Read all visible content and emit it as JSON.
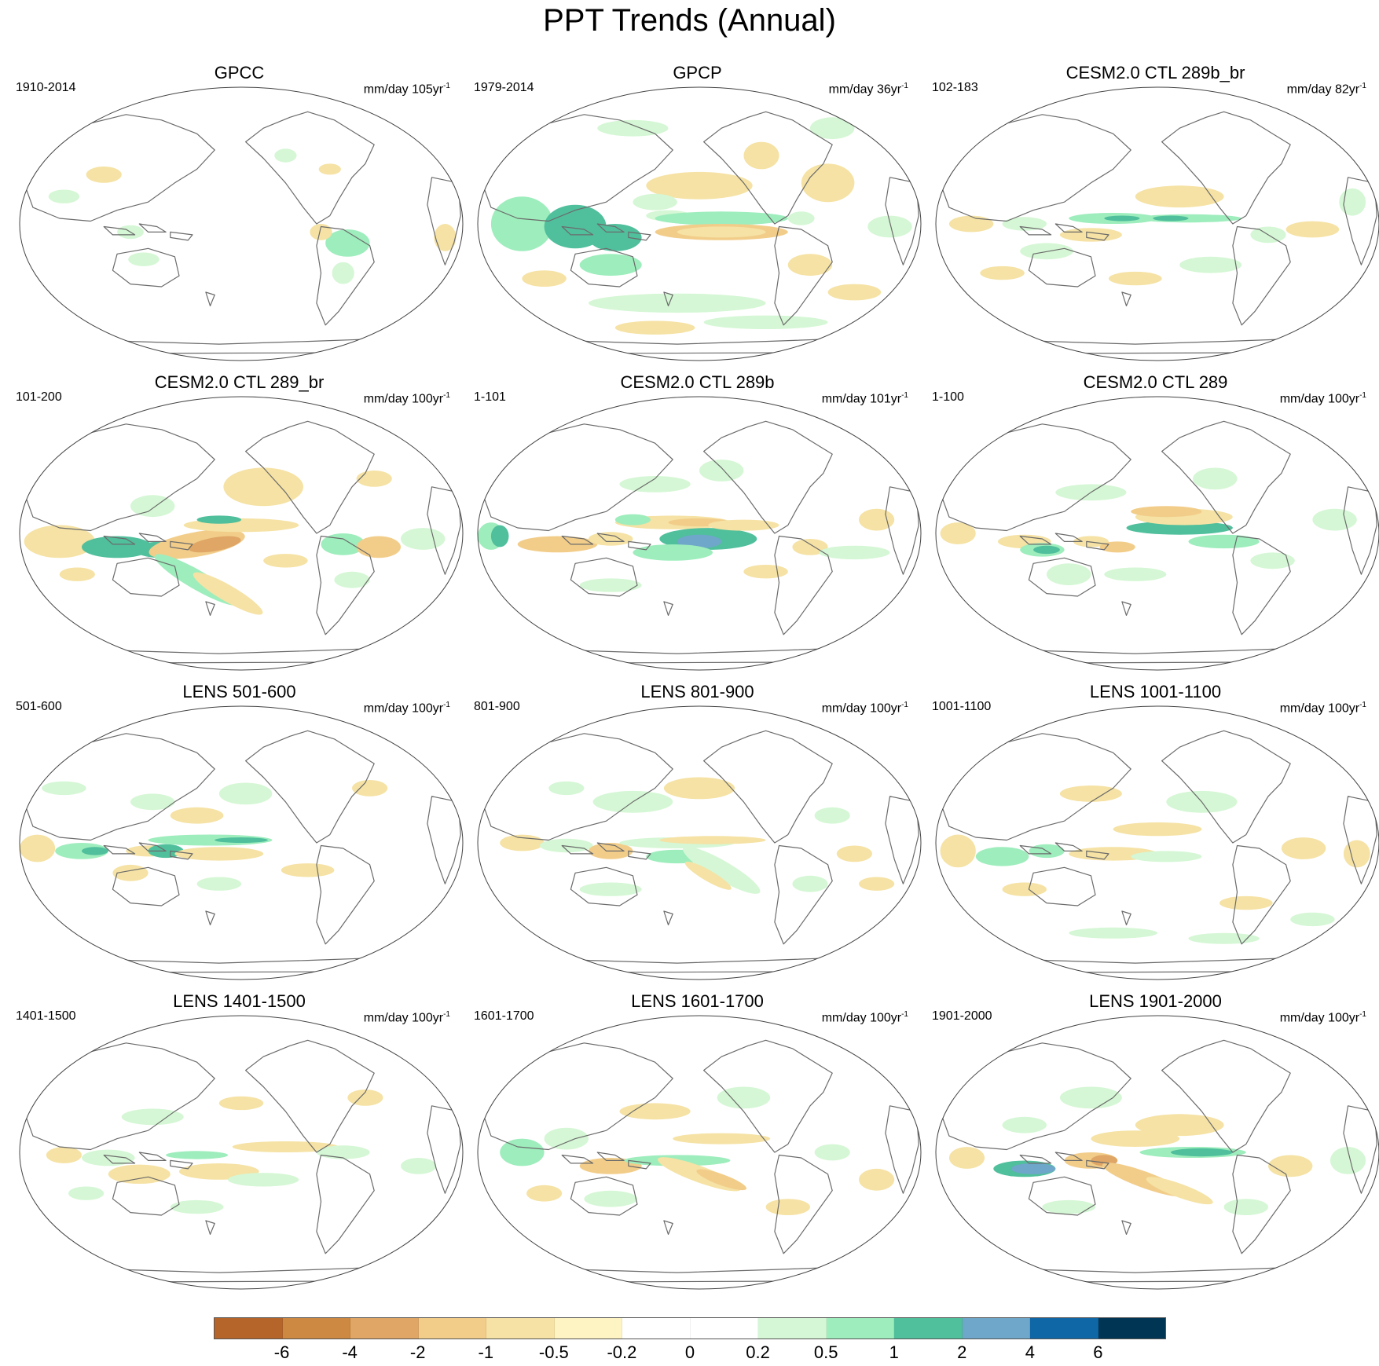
{
  "title": "PPT Trends (Annual)",
  "panels": [
    {
      "title": "GPCC",
      "period": "1910-2014",
      "units_prefix": "mm/day 105yr",
      "units_exp": "-1"
    },
    {
      "title": "GPCP",
      "period": "1979-2014",
      "units_prefix": "mm/day 36yr",
      "units_exp": "-1"
    },
    {
      "title": "CESM2.0 CTL 289b_br",
      "period": "102-183",
      "units_prefix": "mm/day 82yr",
      "units_exp": "-1"
    },
    {
      "title": "CESM2.0 CTL 289_br",
      "period": "101-200",
      "units_prefix": "mm/day 100yr",
      "units_exp": "-1"
    },
    {
      "title": "CESM2.0 CTL 289b",
      "period": "1-101",
      "units_prefix": "mm/day 101yr",
      "units_exp": "-1"
    },
    {
      "title": "CESM2.0 CTL 289",
      "period": "1-100",
      "units_prefix": "mm/day 100yr",
      "units_exp": "-1"
    },
    {
      "title": "LENS 501-600",
      "period": "501-600",
      "units_prefix": "mm/day 100yr",
      "units_exp": "-1"
    },
    {
      "title": "LENS 801-900",
      "period": "801-900",
      "units_prefix": "mm/day 100yr",
      "units_exp": "-1"
    },
    {
      "title": "LENS 1001-1100",
      "period": "1001-1100",
      "units_prefix": "mm/day 100yr",
      "units_exp": "-1"
    },
    {
      "title": "LENS 1401-1500",
      "period": "1401-1500",
      "units_prefix": "mm/day 100yr",
      "units_exp": "-1"
    },
    {
      "title": "LENS 1601-1700",
      "period": "1601-1700",
      "units_prefix": "mm/day 100yr",
      "units_exp": "-1"
    },
    {
      "title": "LENS 1901-2000",
      "period": "1901-2000",
      "units_prefix": "mm/day 100yr",
      "units_exp": "-1"
    }
  ],
  "colorbar": {
    "colors": [
      "#b5652a",
      "#cd8841",
      "#dfa666",
      "#f2cd8a",
      "#f5e2a4",
      "#fdf3c3",
      "#ffffff",
      "#ffffff",
      "#d5f7d5",
      "#9eedbd",
      "#50bf9c",
      "#6ea7c9",
      "#1067a6",
      "#003553"
    ],
    "labels": [
      "-6",
      "-4",
      "-2",
      "-1",
      "-0.5",
      "-0.2",
      "0",
      "0.2",
      "0.5",
      "1",
      "2",
      "4",
      "6"
    ]
  },
  "colors": {
    "coastline": "#6b6b6b",
    "map_border": "#444444"
  }
}
